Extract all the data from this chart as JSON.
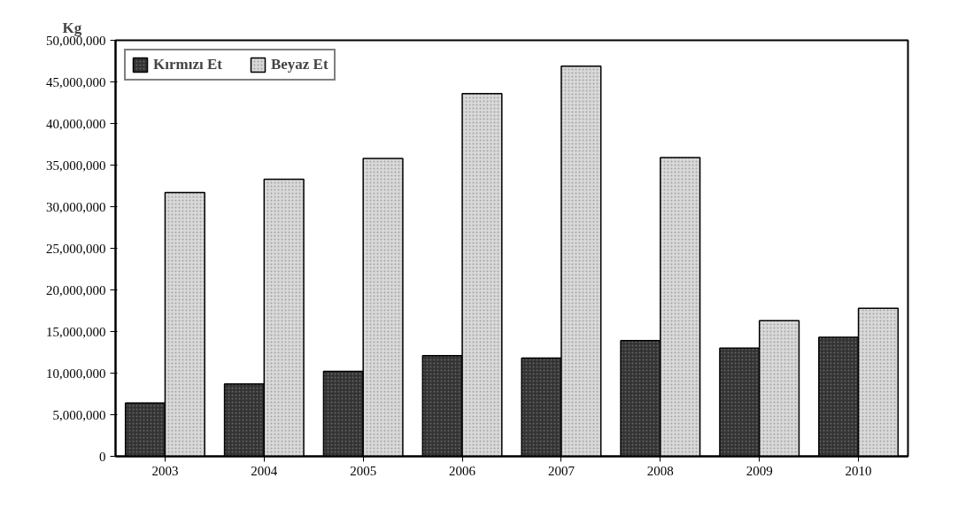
{
  "chart_data": {
    "type": "bar",
    "ylabel": "Kg",
    "categories": [
      "2003",
      "2004",
      "2005",
      "2006",
      "2007",
      "2008",
      "2009",
      "2010"
    ],
    "series": [
      {
        "name": "Kırmızı Et",
        "color": "#333333",
        "values": [
          6400000,
          8700000,
          10200000,
          12100000,
          11800000,
          13900000,
          13000000,
          14300000
        ]
      },
      {
        "name": "Beyaz Et",
        "color": "#d9d9d9",
        "values": [
          31700000,
          33300000,
          35800000,
          43600000,
          46900000,
          35900000,
          16300000,
          17800000
        ]
      }
    ],
    "ylim": [
      0,
      50000000
    ],
    "yticks": [
      {
        "value": 0,
        "label": "0"
      },
      {
        "value": 5000000,
        "label": "5,000,000"
      },
      {
        "value": 10000000,
        "label": "10,000,000"
      },
      {
        "value": 15000000,
        "label": "15,000,000"
      },
      {
        "value": 20000000,
        "label": "20,000,000"
      },
      {
        "value": 25000000,
        "label": "25,000,000"
      },
      {
        "value": 30000000,
        "label": "30,000,000"
      },
      {
        "value": 35000000,
        "label": "35,000,000"
      },
      {
        "value": 40000000,
        "label": "40,000,000"
      },
      {
        "value": 45000000,
        "label": "45,000,000"
      },
      {
        "value": 50000000,
        "label": "50,000,000"
      }
    ],
    "grid": false,
    "legend": "top"
  }
}
